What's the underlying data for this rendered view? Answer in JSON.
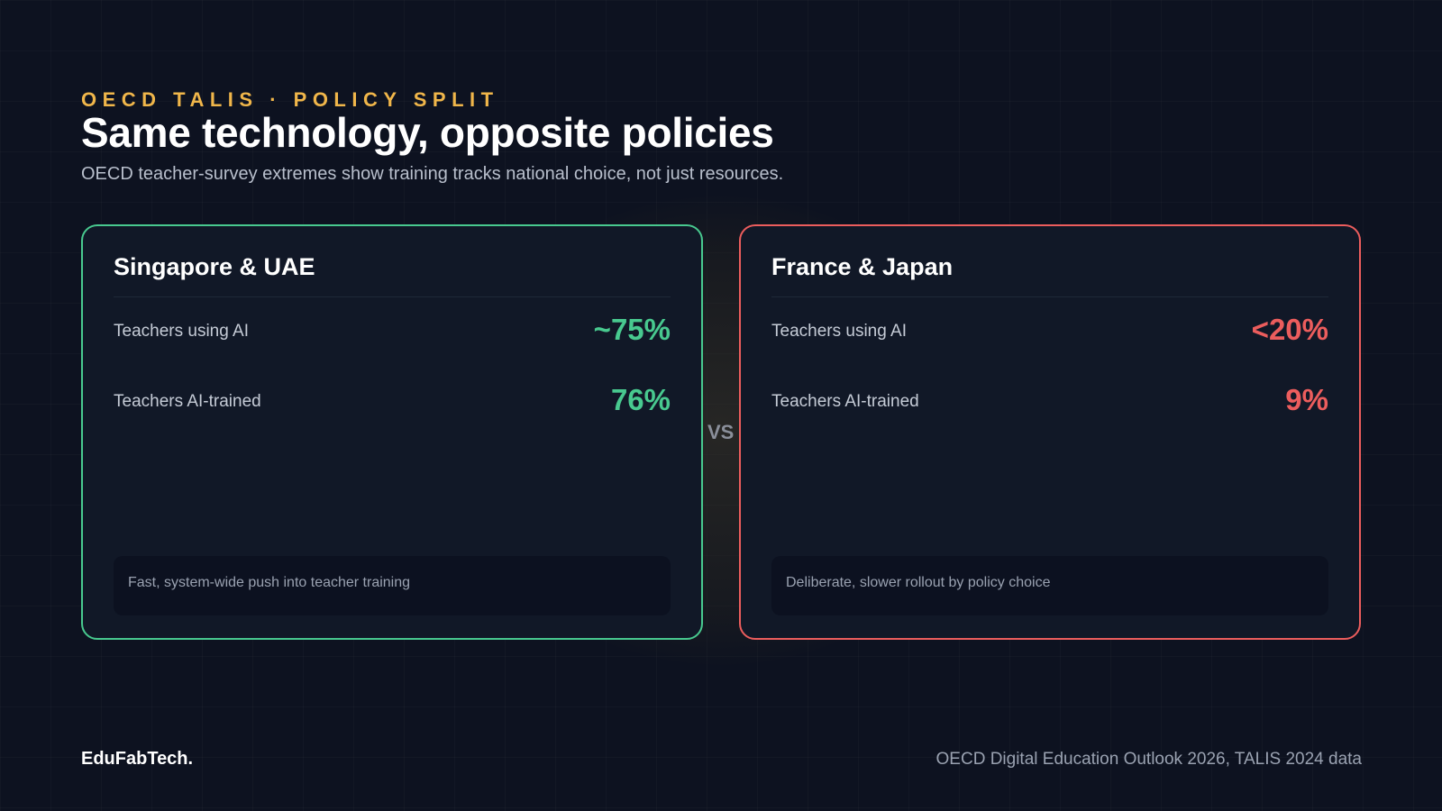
{
  "header": {
    "eyebrow": "OECD TALIS · POLICY SPLIT",
    "title": "Same technology, opposite policies",
    "subtitle": "OECD teacher-survey extremes show training tracks national choice, not just resources."
  },
  "comparison": {
    "left": {
      "title": "Singapore & UAE",
      "accent": "#48c98f",
      "metrics": [
        {
          "label": "Teachers using AI",
          "value": "~75%"
        },
        {
          "label": "Teachers AI-trained",
          "value": "76%"
        }
      ],
      "note": "Fast, system-wide push into teacher training"
    },
    "vs": "VS",
    "right": {
      "title": "France & Japan",
      "accent": "#ec5d5d",
      "metrics": [
        {
          "label": "Teachers using AI",
          "value": "<20%"
        },
        {
          "label": "Teachers AI-trained",
          "value": "9%"
        }
      ],
      "note": "Deliberate, slower rollout by policy choice"
    }
  },
  "footer": {
    "brand": "EduFabTech.",
    "source": "OECD Digital Education Outlook 2026, TALIS 2024 data"
  },
  "colors": {
    "background": "#0d1220",
    "eyebrow": "#f0b64a",
    "positive": "#48c98f",
    "negative": "#ec5d5d"
  }
}
